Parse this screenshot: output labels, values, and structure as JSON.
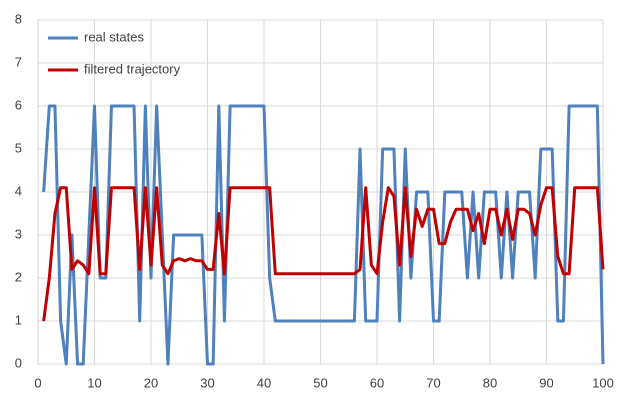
{
  "chart_data": {
    "type": "line",
    "x": [
      1,
      2,
      3,
      4,
      5,
      6,
      7,
      8,
      9,
      10,
      11,
      12,
      13,
      14,
      15,
      16,
      17,
      18,
      19,
      20,
      21,
      22,
      23,
      24,
      25,
      26,
      27,
      28,
      29,
      30,
      31,
      32,
      33,
      34,
      35,
      36,
      37,
      38,
      39,
      40,
      41,
      42,
      43,
      44,
      45,
      46,
      47,
      48,
      49,
      50,
      51,
      52,
      53,
      54,
      55,
      56,
      57,
      58,
      59,
      60,
      61,
      62,
      63,
      64,
      65,
      66,
      67,
      68,
      69,
      70,
      71,
      72,
      73,
      74,
      75,
      76,
      77,
      78,
      79,
      80,
      81,
      82,
      83,
      84,
      85,
      86,
      87,
      88,
      89,
      90,
      91,
      92,
      93,
      94,
      95,
      96,
      97,
      98,
      99,
      100
    ],
    "series": [
      {
        "name": "real states",
        "color": "#4f81bd",
        "values": [
          4,
          6,
          6,
          1,
          0,
          3,
          0,
          0,
          3,
          6,
          2,
          2,
          6,
          6,
          6,
          6,
          6,
          1,
          6,
          2,
          6,
          3,
          0,
          3,
          3,
          3,
          3,
          3,
          3,
          0,
          0,
          6,
          1,
          6,
          6,
          6,
          6,
          6,
          6,
          6,
          2,
          1,
          1,
          1,
          1,
          1,
          1,
          1,
          1,
          1,
          1,
          1,
          1,
          1,
          1,
          1,
          5,
          1,
          1,
          1,
          5,
          5,
          5,
          1,
          5,
          2,
          4,
          4,
          4,
          1,
          1,
          4,
          4,
          4,
          4,
          2,
          4,
          2,
          4,
          4,
          4,
          2,
          4,
          2,
          4,
          4,
          4,
          2,
          5,
          5,
          5,
          1,
          1,
          6,
          6,
          6,
          6,
          6,
          6,
          0
        ]
      },
      {
        "name": "filtered trajectory",
        "color": "#c00000",
        "values": [
          1,
          2,
          3.5,
          4.1,
          4.1,
          2.2,
          2.4,
          2.3,
          2.1,
          4.1,
          2.1,
          2.1,
          4.1,
          4.1,
          4.1,
          4.1,
          4.1,
          2.2,
          4.1,
          2.3,
          4.1,
          2.3,
          2.1,
          2.4,
          2.45,
          2.4,
          2.45,
          2.4,
          2.4,
          2.2,
          2.2,
          3.5,
          2.1,
          4.1,
          4.1,
          4.1,
          4.1,
          4.1,
          4.1,
          4.1,
          4.1,
          2.1,
          2.1,
          2.1,
          2.1,
          2.1,
          2.1,
          2.1,
          2.1,
          2.1,
          2.1,
          2.1,
          2.1,
          2.1,
          2.1,
          2.1,
          2.2,
          4.1,
          2.3,
          2.1,
          3.3,
          4.1,
          3.9,
          2.3,
          4.1,
          2.5,
          3.6,
          3.2,
          3.6,
          3.6,
          2.8,
          2.8,
          3.3,
          3.6,
          3.6,
          3.6,
          3.1,
          3.5,
          2.8,
          3.6,
          3.6,
          3.0,
          3.6,
          2.9,
          3.6,
          3.6,
          3.5,
          3.0,
          3.7,
          4.1,
          4.1,
          2.5,
          2.1,
          2.1,
          4.1,
          4.1,
          4.1,
          4.1,
          4.1,
          2.2
        ]
      }
    ],
    "xlim": [
      0,
      100
    ],
    "xticks": [
      0,
      10,
      20,
      30,
      40,
      50,
      60,
      70,
      80,
      90,
      100
    ],
    "ylim": [
      0,
      8
    ],
    "yticks": [
      0,
      1,
      2,
      3,
      4,
      5,
      6,
      7,
      8
    ],
    "grid": true,
    "legend": "upper-left"
  }
}
